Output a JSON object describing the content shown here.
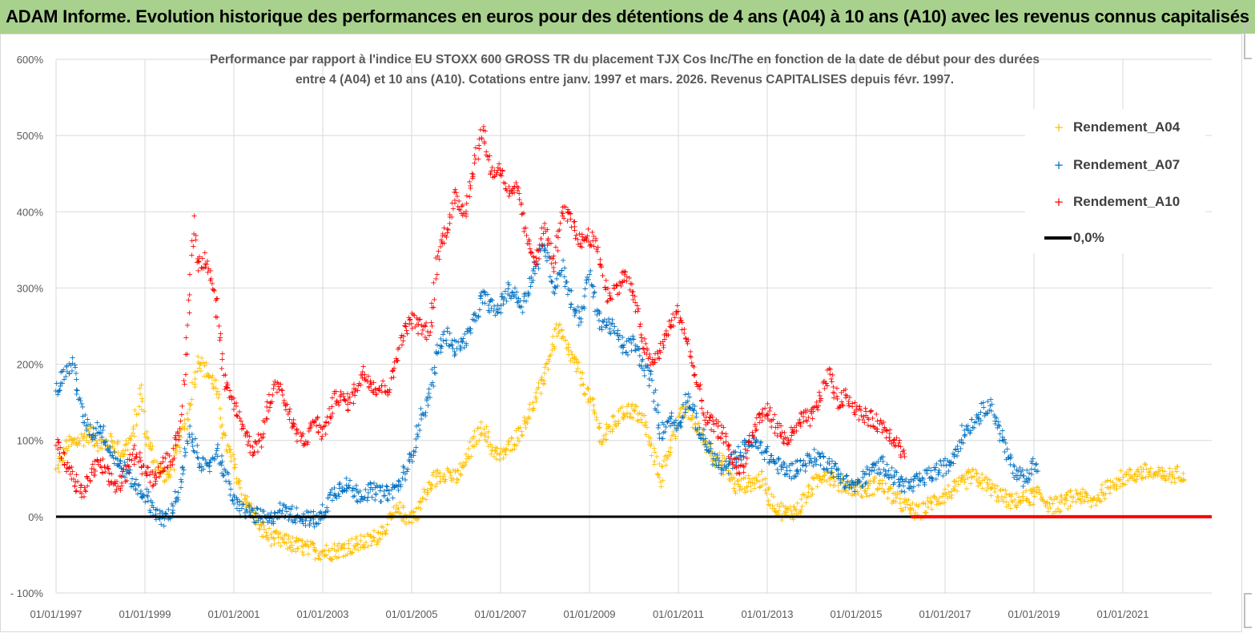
{
  "header": {
    "title": "ADAM Informe. Evolution historique des performances en euros pour des détentions de 4 ans (A04) à 10 ans (A10) avec les revenus connus capitalisés"
  },
  "chart_data": {
    "type": "scatter",
    "title_line1": "Performance par rapport à l'indice EU STOXX 600 GROSS TR  du placement TJX Cos Inc/The en fonction de la date de début pour des durées",
    "title_line2": "entre 4 (A04) et 10 ans (A10). Cotations entre janv. 1997 et mars. 2026. Revenus CAPITALISES depuis févr. 1997.",
    "ylim": [
      -100,
      600
    ],
    "y_ticks": [
      "- 100%",
      "0%",
      "100%",
      "200%",
      "300%",
      "400%",
      "500%",
      "600%"
    ],
    "y_tick_values": [
      -100,
      0,
      100,
      200,
      300,
      400,
      500,
      600
    ],
    "x_ticks": [
      "01/01/1997",
      "01/01/1999",
      "01/01/2001",
      "01/01/2003",
      "01/01/2005",
      "01/01/2007",
      "01/01/2009",
      "01/01/2011",
      "01/01/2013",
      "01/01/2015",
      "01/01/2017",
      "01/01/2019",
      "01/01/2021"
    ],
    "x_range_years": [
      1997.0,
      2023.0
    ],
    "grid": true,
    "legend_position": "top-right",
    "series": [
      {
        "name": "Rendement_A04",
        "color": "#ffc000",
        "points": [
          [
            1997.0,
            60
          ],
          [
            1997.25,
            95
          ],
          [
            1997.5,
            100
          ],
          [
            1997.75,
            110
          ],
          [
            1998.0,
            95
          ],
          [
            1998.25,
            100
          ],
          [
            1998.5,
            85
          ],
          [
            1998.75,
            110
          ],
          [
            1998.9,
            170
          ],
          [
            1999.0,
            110
          ],
          [
            1999.25,
            70
          ],
          [
            1999.5,
            50
          ],
          [
            1999.75,
            90
          ],
          [
            2000.0,
            140
          ],
          [
            2000.2,
            210
          ],
          [
            2000.4,
            190
          ],
          [
            2000.6,
            170
          ],
          [
            2000.8,
            100
          ],
          [
            2001.0,
            70
          ],
          [
            2001.2,
            30
          ],
          [
            2001.4,
            10
          ],
          [
            2001.6,
            -15
          ],
          [
            2001.8,
            -25
          ],
          [
            2002.0,
            -30
          ],
          [
            2002.3,
            -35
          ],
          [
            2002.6,
            -40
          ],
          [
            2002.9,
            -45
          ],
          [
            2003.2,
            -45
          ],
          [
            2003.5,
            -40
          ],
          [
            2003.8,
            -35
          ],
          [
            2004.1,
            -30
          ],
          [
            2004.3,
            -20
          ],
          [
            2004.5,
            -5
          ],
          [
            2004.7,
            10
          ],
          [
            2004.9,
            0
          ],
          [
            2005.1,
            5
          ],
          [
            2005.3,
            30
          ],
          [
            2005.5,
            50
          ],
          [
            2005.8,
            60
          ],
          [
            2006.0,
            50
          ],
          [
            2006.2,
            70
          ],
          [
            2006.4,
            100
          ],
          [
            2006.6,
            120
          ],
          [
            2006.8,
            90
          ],
          [
            2007.0,
            80
          ],
          [
            2007.3,
            100
          ],
          [
            2007.6,
            130
          ],
          [
            2007.9,
            170
          ],
          [
            2008.1,
            210
          ],
          [
            2008.3,
            250
          ],
          [
            2008.5,
            220
          ],
          [
            2008.7,
            200
          ],
          [
            2008.9,
            170
          ],
          [
            2009.1,
            140
          ],
          [
            2009.3,
            100
          ],
          [
            2009.5,
            120
          ],
          [
            2009.8,
            140
          ],
          [
            2010.0,
            140
          ],
          [
            2010.2,
            130
          ],
          [
            2010.4,
            90
          ],
          [
            2010.6,
            50
          ],
          [
            2010.8,
            90
          ],
          [
            2011.0,
            130
          ],
          [
            2011.2,
            140
          ],
          [
            2011.5,
            110
          ],
          [
            2011.8,
            80
          ],
          [
            2012.0,
            70
          ],
          [
            2012.3,
            40
          ],
          [
            2012.6,
            45
          ],
          [
            2012.9,
            50
          ],
          [
            2013.1,
            20
          ],
          [
            2013.4,
            5
          ],
          [
            2013.7,
            10
          ],
          [
            2014.0,
            40
          ],
          [
            2014.3,
            60
          ],
          [
            2014.6,
            45
          ],
          [
            2014.9,
            40
          ],
          [
            2015.2,
            35
          ],
          [
            2015.5,
            45
          ],
          [
            2015.8,
            30
          ],
          [
            2016.1,
            15
          ],
          [
            2016.4,
            5
          ],
          [
            2016.7,
            20
          ],
          [
            2017.0,
            30
          ],
          [
            2017.3,
            40
          ],
          [
            2017.6,
            55
          ],
          [
            2017.9,
            45
          ],
          [
            2018.2,
            30
          ],
          [
            2018.5,
            20
          ],
          [
            2018.8,
            25
          ],
          [
            2019.1,
            30
          ],
          [
            2019.4,
            15
          ],
          [
            2019.7,
            20
          ],
          [
            2020.0,
            30
          ],
          [
            2020.3,
            20
          ],
          [
            2020.6,
            35
          ],
          [
            2020.9,
            50
          ],
          [
            2021.2,
            55
          ],
          [
            2021.5,
            60
          ],
          [
            2021.8,
            55
          ],
          [
            2022.1,
            55
          ],
          [
            2022.4,
            60
          ]
        ]
      },
      {
        "name": "Rendement_A07",
        "color": "#0070c0",
        "points": [
          [
            1997.0,
            165
          ],
          [
            1997.2,
            190
          ],
          [
            1997.4,
            200
          ],
          [
            1997.6,
            130
          ],
          [
            1997.8,
            110
          ],
          [
            1998.0,
            120
          ],
          [
            1998.2,
            90
          ],
          [
            1998.4,
            70
          ],
          [
            1998.6,
            60
          ],
          [
            1998.8,
            40
          ],
          [
            1999.0,
            30
          ],
          [
            1999.2,
            10
          ],
          [
            1999.4,
            -5
          ],
          [
            1999.6,
            10
          ],
          [
            1999.8,
            40
          ],
          [
            2000.0,
            110
          ],
          [
            2000.2,
            80
          ],
          [
            2000.4,
            60
          ],
          [
            2000.6,
            90
          ],
          [
            2000.8,
            60
          ],
          [
            2001.0,
            20
          ],
          [
            2001.2,
            10
          ],
          [
            2001.4,
            5
          ],
          [
            2001.6,
            0
          ],
          [
            2001.8,
            -5
          ],
          [
            2002.0,
            10
          ],
          [
            2002.3,
            5
          ],
          [
            2002.6,
            0
          ],
          [
            2002.9,
            -5
          ],
          [
            2003.2,
            30
          ],
          [
            2003.5,
            45
          ],
          [
            2003.8,
            30
          ],
          [
            2004.1,
            35
          ],
          [
            2004.4,
            30
          ],
          [
            2004.7,
            40
          ],
          [
            2005.0,
            80
          ],
          [
            2005.2,
            130
          ],
          [
            2005.4,
            160
          ],
          [
            2005.6,
            220
          ],
          [
            2005.8,
            240
          ],
          [
            2006.0,
            220
          ],
          [
            2006.3,
            240
          ],
          [
            2006.6,
            290
          ],
          [
            2006.9,
            270
          ],
          [
            2007.2,
            300
          ],
          [
            2007.5,
            280
          ],
          [
            2007.8,
            330
          ],
          [
            2008.0,
            360
          ],
          [
            2008.2,
            300
          ],
          [
            2008.4,
            330
          ],
          [
            2008.6,
            280
          ],
          [
            2008.8,
            260
          ],
          [
            2009.0,
            320
          ],
          [
            2009.2,
            260
          ],
          [
            2009.5,
            250
          ],
          [
            2009.8,
            220
          ],
          [
            2010.0,
            230
          ],
          [
            2010.2,
            200
          ],
          [
            2010.4,
            180
          ],
          [
            2010.6,
            110
          ],
          [
            2010.8,
            130
          ],
          [
            2011.0,
            120
          ],
          [
            2011.2,
            160
          ],
          [
            2011.5,
            110
          ],
          [
            2011.8,
            80
          ],
          [
            2012.0,
            60
          ],
          [
            2012.3,
            80
          ],
          [
            2012.6,
            100
          ],
          [
            2012.9,
            90
          ],
          [
            2013.2,
            70
          ],
          [
            2013.5,
            60
          ],
          [
            2013.8,
            70
          ],
          [
            2014.1,
            80
          ],
          [
            2014.4,
            70
          ],
          [
            2014.7,
            50
          ],
          [
            2015.0,
            40
          ],
          [
            2015.3,
            60
          ],
          [
            2015.6,
            70
          ],
          [
            2015.9,
            50
          ],
          [
            2016.2,
            40
          ],
          [
            2016.5,
            50
          ],
          [
            2016.8,
            60
          ],
          [
            2017.1,
            70
          ],
          [
            2017.4,
            110
          ],
          [
            2017.7,
            130
          ],
          [
            2018.0,
            150
          ],
          [
            2018.2,
            120
          ],
          [
            2018.4,
            80
          ],
          [
            2018.6,
            60
          ],
          [
            2018.8,
            50
          ],
          [
            2019.0,
            70
          ],
          [
            2019.1,
            60
          ]
        ]
      },
      {
        "name": "Rendement_A10",
        "color": "#ff0000",
        "points": [
          [
            1997.0,
            100
          ],
          [
            1997.2,
            70
          ],
          [
            1997.4,
            50
          ],
          [
            1997.6,
            30
          ],
          [
            1997.8,
            60
          ],
          [
            1998.0,
            70
          ],
          [
            1998.2,
            50
          ],
          [
            1998.4,
            40
          ],
          [
            1998.6,
            60
          ],
          [
            1998.8,
            90
          ],
          [
            1999.0,
            60
          ],
          [
            1999.2,
            50
          ],
          [
            1999.4,
            70
          ],
          [
            1999.6,
            80
          ],
          [
            1999.8,
            110
          ],
          [
            2000.0,
            280
          ],
          [
            2000.1,
            390
          ],
          [
            2000.2,
            330
          ],
          [
            2000.4,
            340
          ],
          [
            2000.6,
            280
          ],
          [
            2000.8,
            170
          ],
          [
            2001.0,
            150
          ],
          [
            2001.2,
            120
          ],
          [
            2001.4,
            90
          ],
          [
            2001.6,
            100
          ],
          [
            2001.8,
            150
          ],
          [
            2002.0,
            180
          ],
          [
            2002.2,
            140
          ],
          [
            2002.4,
            110
          ],
          [
            2002.6,
            100
          ],
          [
            2002.8,
            130
          ],
          [
            2003.0,
            110
          ],
          [
            2003.3,
            160
          ],
          [
            2003.6,
            150
          ],
          [
            2003.9,
            190
          ],
          [
            2004.2,
            170
          ],
          [
            2004.5,
            170
          ],
          [
            2004.8,
            240
          ],
          [
            2005.0,
            260
          ],
          [
            2005.2,
            250
          ],
          [
            2005.4,
            240
          ],
          [
            2005.6,
            350
          ],
          [
            2005.8,
            380
          ],
          [
            2006.0,
            420
          ],
          [
            2006.2,
            400
          ],
          [
            2006.4,
            460
          ],
          [
            2006.6,
            510
          ],
          [
            2006.8,
            450
          ],
          [
            2007.0,
            460
          ],
          [
            2007.2,
            420
          ],
          [
            2007.4,
            430
          ],
          [
            2007.6,
            360
          ],
          [
            2007.8,
            340
          ],
          [
            2008.0,
            380
          ],
          [
            2008.2,
            330
          ],
          [
            2008.4,
            400
          ],
          [
            2008.6,
            390
          ],
          [
            2008.8,
            360
          ],
          [
            2009.0,
            370
          ],
          [
            2009.2,
            350
          ],
          [
            2009.4,
            290
          ],
          [
            2009.6,
            300
          ],
          [
            2009.8,
            320
          ],
          [
            2010.0,
            290
          ],
          [
            2010.2,
            230
          ],
          [
            2010.4,
            200
          ],
          [
            2010.6,
            220
          ],
          [
            2010.8,
            250
          ],
          [
            2011.0,
            270
          ],
          [
            2011.2,
            230
          ],
          [
            2011.4,
            180
          ],
          [
            2011.6,
            130
          ],
          [
            2011.8,
            120
          ],
          [
            2012.0,
            110
          ],
          [
            2012.2,
            80
          ],
          [
            2012.4,
            60
          ],
          [
            2012.6,
            100
          ],
          [
            2012.8,
            130
          ],
          [
            2013.0,
            140
          ],
          [
            2013.2,
            120
          ],
          [
            2013.4,
            100
          ],
          [
            2013.6,
            110
          ],
          [
            2013.8,
            130
          ],
          [
            2014.0,
            130
          ],
          [
            2014.2,
            160
          ],
          [
            2014.4,
            190
          ],
          [
            2014.6,
            150
          ],
          [
            2014.8,
            160
          ],
          [
            2015.0,
            140
          ],
          [
            2015.3,
            130
          ],
          [
            2015.6,
            120
          ],
          [
            2015.9,
            100
          ],
          [
            2016.1,
            80
          ]
        ]
      },
      {
        "name": "0,0%",
        "color": "#000000"
      }
    ]
  }
}
